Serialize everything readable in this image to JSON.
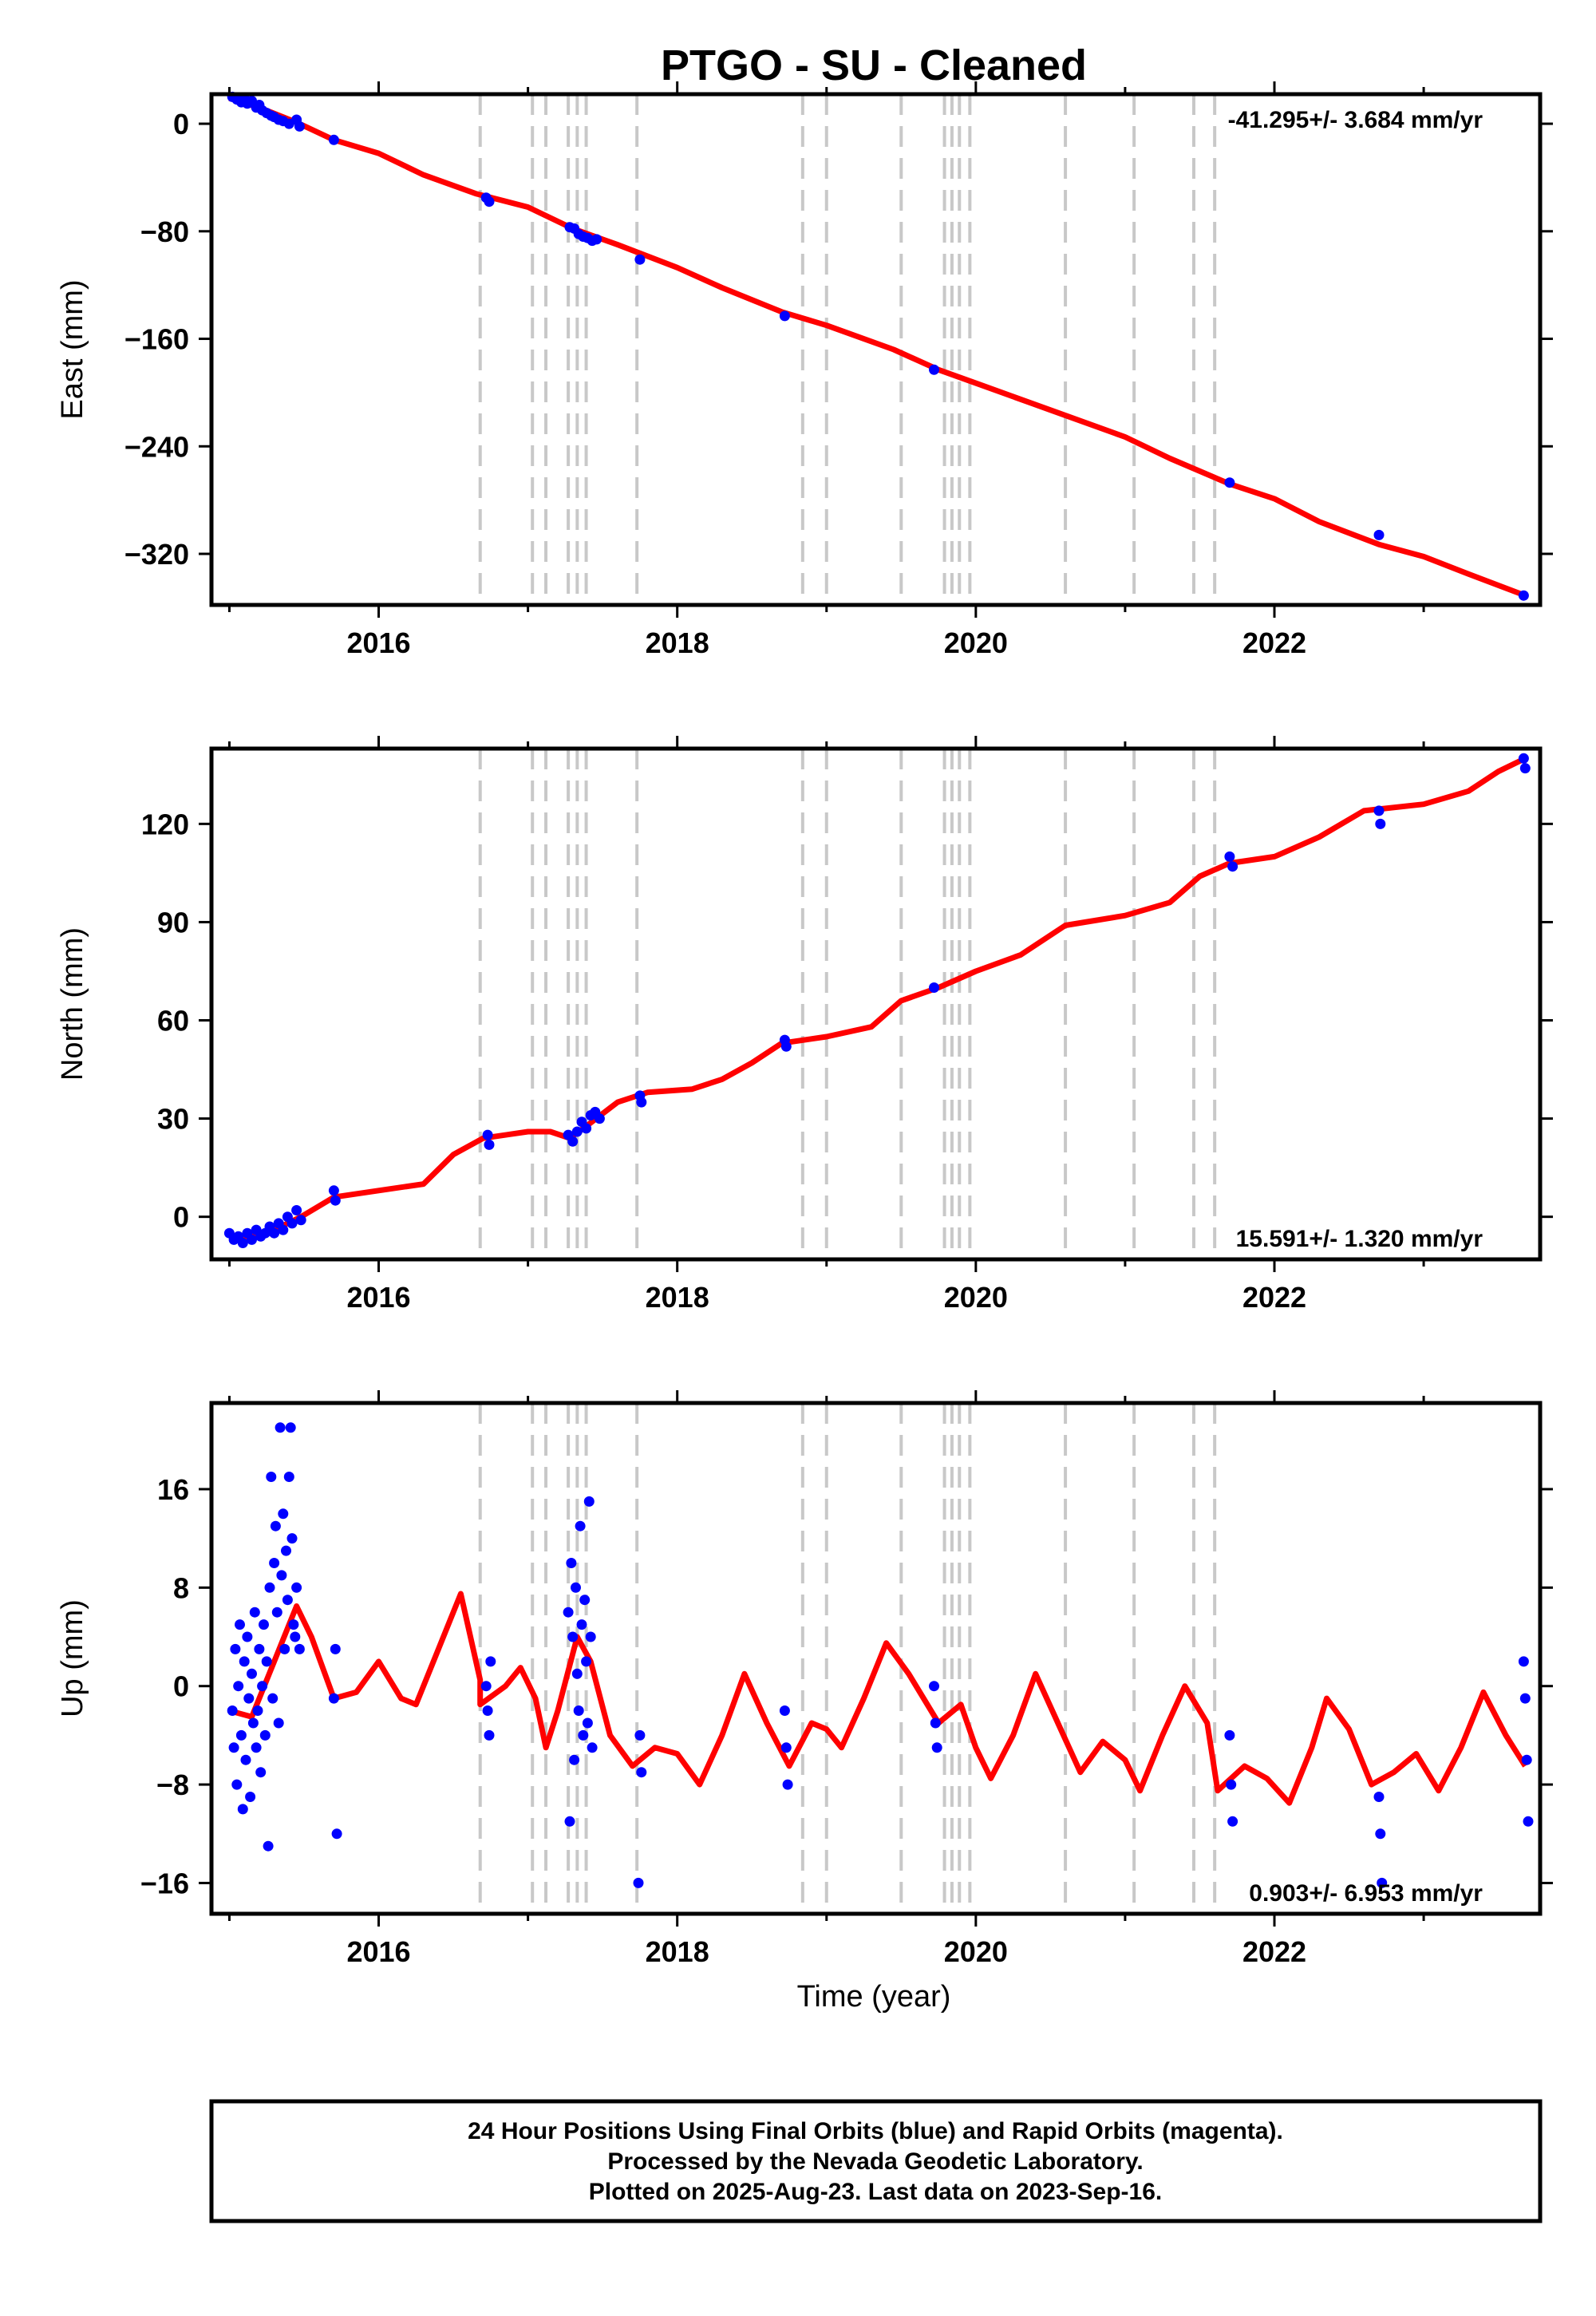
{
  "title": "PTGO  - SU - Cleaned",
  "xlabel": "Time (year)",
  "colors": {
    "data": "#0000ff",
    "model": "#ff0000",
    "steps": "#c8c8c8",
    "frame": "#000000"
  },
  "footnote": [
    "24 Hour Positions Using Final Orbits (blue) and Rapid Orbits (magenta).",
    "Processed by the Nevada Geodetic Laboratory.",
    "Plotted on 2025-Aug-23. Last data on 2023-Sep-16."
  ],
  "chart_data": [
    {
      "type": "scatter",
      "panel": "east",
      "ylabel": "East (mm)",
      "rate_label": "-41.295+/- 3.684 mm/yr",
      "xlim": [
        2014.88,
        2023.78
      ],
      "ylim": [
        -358,
        22
      ],
      "xticks": [
        2016,
        2018,
        2020,
        2022
      ],
      "yticks": [
        0,
        -80,
        -160,
        -240,
        -320
      ],
      "step_lines": [
        2016.68,
        2017.03,
        2017.12,
        2017.27,
        2017.33,
        2017.39,
        2017.73,
        2018.84,
        2019.0,
        2019.5,
        2019.79,
        2019.84,
        2019.89,
        2019.96,
        2020.6,
        2021.06,
        2021.46,
        2021.6
      ],
      "model": [
        [
          2015.0,
          19
        ],
        [
          2015.2,
          12
        ],
        [
          2015.45,
          1
        ],
        [
          2015.7,
          -12
        ],
        [
          2016.0,
          -22
        ],
        [
          2016.3,
          -38
        ],
        [
          2016.65,
          -52
        ],
        [
          2017.0,
          -62
        ],
        [
          2017.3,
          -78
        ],
        [
          2017.6,
          -90
        ],
        [
          2018.0,
          -107
        ],
        [
          2018.3,
          -122
        ],
        [
          2018.7,
          -140
        ],
        [
          2019.0,
          -150
        ],
        [
          2019.45,
          -168
        ],
        [
          2019.75,
          -183
        ],
        [
          2020.0,
          -193
        ],
        [
          2020.5,
          -213
        ],
        [
          2021.0,
          -233
        ],
        [
          2021.3,
          -249
        ],
        [
          2021.7,
          -268
        ],
        [
          2022.0,
          -279
        ],
        [
          2022.3,
          -296
        ],
        [
          2022.7,
          -313
        ],
        [
          2023.0,
          -322
        ],
        [
          2023.3,
          -335
        ],
        [
          2023.68,
          -351
        ]
      ],
      "points": [
        [
          2015.02,
          20
        ],
        [
          2015.05,
          18
        ],
        [
          2015.08,
          16
        ],
        [
          2015.1,
          19
        ],
        [
          2015.12,
          15
        ],
        [
          2015.15,
          17
        ],
        [
          2015.18,
          12
        ],
        [
          2015.2,
          14
        ],
        [
          2015.22,
          10
        ],
        [
          2015.25,
          8
        ],
        [
          2015.28,
          6
        ],
        [
          2015.3,
          5
        ],
        [
          2015.33,
          3
        ],
        [
          2015.36,
          2
        ],
        [
          2015.4,
          0
        ],
        [
          2015.45,
          3
        ],
        [
          2015.47,
          -2
        ],
        [
          2015.7,
          -12
        ],
        [
          2016.72,
          -55
        ],
        [
          2016.74,
          -58
        ],
        [
          2017.28,
          -77
        ],
        [
          2017.31,
          -78
        ],
        [
          2017.34,
          -82
        ],
        [
          2017.37,
          -84
        ],
        [
          2017.4,
          -85
        ],
        [
          2017.43,
          -87
        ],
        [
          2017.46,
          -86
        ],
        [
          2017.75,
          -101
        ],
        [
          2018.72,
          -143
        ],
        [
          2019.72,
          -183
        ],
        [
          2021.7,
          -267
        ],
        [
          2022.7,
          -306
        ],
        [
          2023.67,
          -351
        ]
      ]
    },
    {
      "type": "scatter",
      "panel": "north",
      "ylabel": "North (mm)",
      "rate_label": "15.591+/- 1.320 mm/yr",
      "xlim": [
        2014.88,
        2023.78
      ],
      "ylim": [
        -13,
        143
      ],
      "xticks": [
        2016,
        2018,
        2020,
        2022
      ],
      "yticks": [
        0,
        30,
        60,
        90,
        120
      ],
      "step_lines": [
        2016.68,
        2017.03,
        2017.12,
        2017.27,
        2017.33,
        2017.39,
        2017.73,
        2018.84,
        2019.0,
        2019.5,
        2019.79,
        2019.84,
        2019.89,
        2019.96,
        2020.6,
        2021.06,
        2021.46,
        2021.6
      ],
      "model": [
        [
          2015.0,
          -6
        ],
        [
          2015.15,
          -6
        ],
        [
          2015.3,
          -4
        ],
        [
          2015.48,
          0
        ],
        [
          2015.7,
          6
        ],
        [
          2016.0,
          8
        ],
        [
          2016.3,
          10
        ],
        [
          2016.5,
          19
        ],
        [
          2016.7,
          24
        ],
        [
          2017.0,
          26
        ],
        [
          2017.15,
          26
        ],
        [
          2017.28,
          24
        ],
        [
          2017.4,
          28
        ],
        [
          2017.6,
          35
        ],
        [
          2017.8,
          38
        ],
        [
          2018.1,
          39
        ],
        [
          2018.3,
          42
        ],
        [
          2018.5,
          47
        ],
        [
          2018.7,
          53
        ],
        [
          2019.0,
          55
        ],
        [
          2019.3,
          58
        ],
        [
          2019.5,
          66
        ],
        [
          2019.75,
          70
        ],
        [
          2020.0,
          75
        ],
        [
          2020.3,
          80
        ],
        [
          2020.6,
          89
        ],
        [
          2021.0,
          92
        ],
        [
          2021.3,
          96
        ],
        [
          2021.5,
          104
        ],
        [
          2021.7,
          108
        ],
        [
          2022.0,
          110
        ],
        [
          2022.3,
          116
        ],
        [
          2022.6,
          124
        ],
        [
          2023.0,
          126
        ],
        [
          2023.3,
          130
        ],
        [
          2023.5,
          136
        ],
        [
          2023.68,
          140
        ]
      ],
      "points": [
        [
          2015.0,
          -5
        ],
        [
          2015.03,
          -7
        ],
        [
          2015.06,
          -6
        ],
        [
          2015.09,
          -8
        ],
        [
          2015.12,
          -5
        ],
        [
          2015.15,
          -7
        ],
        [
          2015.18,
          -4
        ],
        [
          2015.21,
          -6
        ],
        [
          2015.24,
          -5
        ],
        [
          2015.27,
          -3
        ],
        [
          2015.3,
          -5
        ],
        [
          2015.33,
          -2
        ],
        [
          2015.36,
          -4
        ],
        [
          2015.39,
          0
        ],
        [
          2015.42,
          -2
        ],
        [
          2015.45,
          2
        ],
        [
          2015.48,
          -1
        ],
        [
          2015.7,
          8
        ],
        [
          2015.71,
          5
        ],
        [
          2016.73,
          25
        ],
        [
          2016.74,
          22
        ],
        [
          2017.27,
          25
        ],
        [
          2017.3,
          23
        ],
        [
          2017.33,
          26
        ],
        [
          2017.36,
          29
        ],
        [
          2017.39,
          27
        ],
        [
          2017.42,
          31
        ],
        [
          2017.45,
          32
        ],
        [
          2017.48,
          30
        ],
        [
          2017.75,
          37
        ],
        [
          2017.76,
          35
        ],
        [
          2018.72,
          54
        ],
        [
          2018.73,
          52
        ],
        [
          2019.72,
          70
        ],
        [
          2021.7,
          110
        ],
        [
          2021.72,
          107
        ],
        [
          2022.7,
          124
        ],
        [
          2022.71,
          120
        ],
        [
          2023.67,
          140
        ],
        [
          2023.68,
          137
        ]
      ]
    },
    {
      "type": "scatter",
      "panel": "up",
      "ylabel": "Up (mm)",
      "rate_label": "0.903+/- 6.953 mm/yr",
      "xlim": [
        2014.88,
        2023.78
      ],
      "ylim": [
        -18.5,
        23
      ],
      "xticks": [
        2016,
        2018,
        2020,
        2022
      ],
      "yticks": [
        16,
        8,
        0,
        -8,
        -16
      ],
      "step_lines": [
        2016.68,
        2017.03,
        2017.12,
        2017.27,
        2017.33,
        2017.39,
        2017.73,
        2018.84,
        2019.0,
        2019.5,
        2019.79,
        2019.84,
        2019.89,
        2019.96,
        2020.6,
        2021.06,
        2021.46,
        2021.6
      ],
      "model": [
        [
          2015.0,
          -2
        ],
        [
          2015.15,
          -2.5
        ],
        [
          2015.3,
          2
        ],
        [
          2015.45,
          6.5
        ],
        [
          2015.55,
          4
        ],
        [
          2015.7,
          -1
        ],
        [
          2015.85,
          -0.5
        ],
        [
          2016.0,
          2
        ],
        [
          2016.15,
          -1
        ],
        [
          2016.25,
          -1.5
        ],
        [
          2016.4,
          3
        ],
        [
          2016.55,
          7.5
        ],
        [
          2016.68,
          0.5
        ],
        [
          2016.68,
          -1.5
        ],
        [
          2016.85,
          0
        ],
        [
          2016.95,
          1.5
        ],
        [
          2017.05,
          -1
        ],
        [
          2017.12,
          -5
        ],
        [
          2017.2,
          -2
        ],
        [
          2017.33,
          4
        ],
        [
          2017.42,
          2
        ],
        [
          2017.55,
          -4
        ],
        [
          2017.7,
          -6.5
        ],
        [
          2017.85,
          -5
        ],
        [
          2018.0,
          -5.5
        ],
        [
          2018.15,
          -8
        ],
        [
          2018.3,
          -4
        ],
        [
          2018.45,
          1
        ],
        [
          2018.6,
          -3
        ],
        [
          2018.75,
          -6.5
        ],
        [
          2018.9,
          -3
        ],
        [
          2019.0,
          -3.5
        ],
        [
          2019.1,
          -5
        ],
        [
          2019.25,
          -1
        ],
        [
          2019.4,
          3.5
        ],
        [
          2019.55,
          1
        ],
        [
          2019.75,
          -3
        ],
        [
          2019.9,
          -1.5
        ],
        [
          2020.0,
          -5
        ],
        [
          2020.1,
          -7.5
        ],
        [
          2020.25,
          -4
        ],
        [
          2020.4,
          1
        ],
        [
          2020.55,
          -3
        ],
        [
          2020.7,
          -7
        ],
        [
          2020.85,
          -4.5
        ],
        [
          2021.0,
          -6
        ],
        [
          2021.1,
          -8.5
        ],
        [
          2021.25,
          -4
        ],
        [
          2021.4,
          0
        ],
        [
          2021.55,
          -3
        ],
        [
          2021.62,
          -8.5
        ],
        [
          2021.8,
          -6.5
        ],
        [
          2021.95,
          -7.5
        ],
        [
          2022.1,
          -9.5
        ],
        [
          2022.25,
          -5
        ],
        [
          2022.35,
          -1
        ],
        [
          2022.5,
          -3.5
        ],
        [
          2022.65,
          -8
        ],
        [
          2022.8,
          -7
        ],
        [
          2022.95,
          -5.5
        ],
        [
          2023.1,
          -8.5
        ],
        [
          2023.25,
          -5
        ],
        [
          2023.4,
          -0.5
        ],
        [
          2023.55,
          -4
        ],
        [
          2023.68,
          -6.5
        ]
      ],
      "points": [
        [
          2015.02,
          -2
        ],
        [
          2015.03,
          -5
        ],
        [
          2015.04,
          3
        ],
        [
          2015.05,
          -8
        ],
        [
          2015.06,
          0
        ],
        [
          2015.07,
          5
        ],
        [
          2015.08,
          -4
        ],
        [
          2015.09,
          -10
        ],
        [
          2015.1,
          2
        ],
        [
          2015.11,
          -6
        ],
        [
          2015.12,
          4
        ],
        [
          2015.13,
          -1
        ],
        [
          2015.14,
          -9
        ],
        [
          2015.15,
          1
        ],
        [
          2015.16,
          -3
        ],
        [
          2015.17,
          6
        ],
        [
          2015.18,
          -5
        ],
        [
          2015.19,
          -2
        ],
        [
          2015.2,
          3
        ],
        [
          2015.21,
          -7
        ],
        [
          2015.22,
          0
        ],
        [
          2015.23,
          5
        ],
        [
          2015.24,
          -4
        ],
        [
          2015.25,
          2
        ],
        [
          2015.26,
          -13
        ],
        [
          2015.27,
          8
        ],
        [
          2015.28,
          17
        ],
        [
          2015.29,
          -1
        ],
        [
          2015.3,
          10
        ],
        [
          2015.31,
          13
        ],
        [
          2015.32,
          6
        ],
        [
          2015.33,
          -3
        ],
        [
          2015.34,
          21
        ],
        [
          2015.35,
          9
        ],
        [
          2015.36,
          14
        ],
        [
          2015.37,
          3
        ],
        [
          2015.38,
          11
        ],
        [
          2015.39,
          7
        ],
        [
          2015.4,
          17
        ],
        [
          2015.41,
          21
        ],
        [
          2015.42,
          12
        ],
        [
          2015.43,
          5
        ],
        [
          2015.44,
          4
        ],
        [
          2015.45,
          8
        ],
        [
          2015.47,
          3
        ],
        [
          2015.7,
          -1
        ],
        [
          2015.71,
          3
        ],
        [
          2015.72,
          -12
        ],
        [
          2016.72,
          0
        ],
        [
          2016.73,
          -2
        ],
        [
          2016.74,
          -4
        ],
        [
          2016.75,
          2
        ],
        [
          2017.27,
          6
        ],
        [
          2017.28,
          -11
        ],
        [
          2017.29,
          10
        ],
        [
          2017.3,
          4
        ],
        [
          2017.31,
          -6
        ],
        [
          2017.32,
          8
        ],
        [
          2017.33,
          1
        ],
        [
          2017.34,
          -2
        ],
        [
          2017.35,
          13
        ],
        [
          2017.36,
          5
        ],
        [
          2017.37,
          -4
        ],
        [
          2017.38,
          7
        ],
        [
          2017.39,
          2
        ],
        [
          2017.4,
          -3
        ],
        [
          2017.41,
          15
        ],
        [
          2017.42,
          4
        ],
        [
          2017.43,
          -5
        ],
        [
          2017.75,
          -4
        ],
        [
          2017.76,
          -7
        ],
        [
          2017.74,
          -16
        ],
        [
          2018.72,
          -2
        ],
        [
          2018.73,
          -5
        ],
        [
          2018.74,
          -8
        ],
        [
          2019.72,
          0
        ],
        [
          2019.73,
          -3
        ],
        [
          2019.74,
          -5
        ],
        [
          2021.7,
          -4
        ],
        [
          2021.71,
          -8
        ],
        [
          2021.72,
          -11
        ],
        [
          2022.7,
          -9
        ],
        [
          2022.71,
          -12
        ],
        [
          2022.72,
          -16
        ],
        [
          2023.67,
          2
        ],
        [
          2023.68,
          -1
        ],
        [
          2023.69,
          -6
        ],
        [
          2023.7,
          -11
        ]
      ]
    }
  ]
}
